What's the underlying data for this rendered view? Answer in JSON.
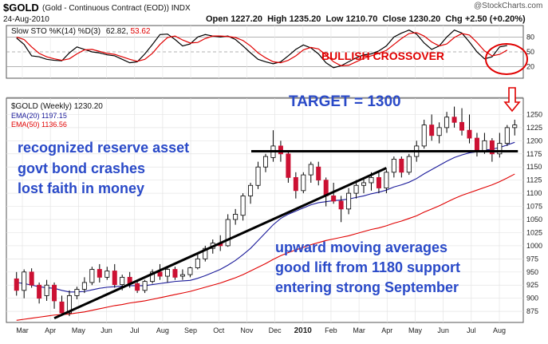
{
  "header": {
    "symbol": "$GOLD",
    "name": "(Gold - Continuous Contract (EOD))",
    "exchange": "INDX",
    "date": "24-Aug-2010",
    "open_label": "Open",
    "open": "1227.20",
    "high_label": "High",
    "high": "1235.20",
    "low_label": "Low",
    "low": "1210.70",
    "close_label": "Close",
    "close": "1230.20",
    "chg_label": "Chg",
    "chg": "+2.50 (+0.20%)",
    "logo_text": "@StockCharts.com"
  },
  "colors": {
    "up_candle": "#ffffff",
    "down_candle": "#cc1133",
    "ema20": "#1a1a9a",
    "ema50": "#e00000",
    "sto_k": "#000000",
    "sto_d": "#e00000",
    "annotation_blue": "#2a4ac8",
    "annotation_red": "#e00000",
    "trendline": "#000000"
  },
  "chart_data": [
    {
      "type": "line",
      "title": "Slow STO %K(14) %D(3)",
      "title_values": "62.82, 53.62",
      "k_label": "62.82",
      "d_label": "53.62",
      "ylim": [
        0,
        100
      ],
      "yticks": [
        "20",
        "50",
        "80"
      ],
      "series": [
        {
          "name": "%K",
          "values": [
            78,
            65,
            42,
            40,
            35,
            33,
            32,
            48,
            60,
            55,
            50,
            48,
            44,
            42,
            35,
            28,
            30,
            46,
            65,
            85,
            86,
            75,
            62,
            66,
            80,
            85,
            82,
            80,
            82,
            75,
            62,
            48,
            35,
            30,
            26,
            30,
            42,
            55,
            64,
            58,
            46,
            28,
            18,
            22,
            30,
            38,
            44,
            46,
            52,
            62,
            80,
            88,
            94,
            86,
            68,
            55,
            62,
            80,
            94,
            88,
            70,
            50,
            36,
            40,
            60,
            62.8
          ]
        },
        {
          "name": "%D",
          "values": [
            80,
            75,
            60,
            47,
            40,
            36,
            33,
            36,
            46,
            54,
            55,
            51,
            47,
            45,
            40,
            35,
            31,
            35,
            47,
            65,
            79,
            82,
            74,
            68,
            69,
            77,
            82,
            82,
            81,
            79,
            73,
            62,
            48,
            38,
            30,
            28,
            33,
            42,
            54,
            59,
            56,
            44,
            30,
            22,
            23,
            30,
            37,
            42,
            47,
            53,
            65,
            77,
            87,
            89,
            82,
            70,
            62,
            66,
            79,
            87,
            84,
            69,
            52,
            42,
            45,
            53.6
          ]
        }
      ],
      "annotations": [
        "BULLISH CROSSOVER"
      ]
    },
    {
      "type": "candlestick",
      "title": "$GOLD (Weekly) 1230.20",
      "ylim": [
        860,
        1275
      ],
      "yticks": [
        875,
        900,
        925,
        950,
        975,
        1000,
        1025,
        1050,
        1075,
        1100,
        1125,
        1150,
        1175,
        1200,
        1225,
        1250
      ],
      "xticks": [
        "Mar",
        "Apr",
        "May",
        "Jun",
        "Jul",
        "Aug",
        "Sep",
        "Oct",
        "Nov",
        "Dec",
        "2010",
        "Feb",
        "Mar",
        "Apr",
        "May",
        "Jun",
        "Jul",
        "Aug"
      ],
      "legend": [
        "$GOLD (Weekly) 1230.20",
        "EMA(20) 1197.15",
        "EMA(50) 1136.56"
      ],
      "ohlc": [
        [
          937,
          950,
          905,
          915
        ],
        [
          915,
          955,
          900,
          950
        ],
        [
          950,
          957,
          920,
          925
        ],
        [
          925,
          930,
          890,
          900
        ],
        [
          905,
          935,
          895,
          925
        ],
        [
          925,
          930,
          880,
          895
        ],
        [
          893,
          905,
          868,
          872
        ],
        [
          872,
          915,
          866,
          905
        ],
        [
          905,
          922,
          898,
          917
        ],
        [
          917,
          940,
          910,
          930
        ],
        [
          930,
          960,
          925,
          955
        ],
        [
          955,
          965,
          930,
          940
        ],
        [
          940,
          960,
          935,
          952
        ],
        [
          952,
          965,
          920,
          926
        ],
        [
          926,
          945,
          915,
          940
        ],
        [
          940,
          950,
          920,
          928
        ],
        [
          928,
          935,
          910,
          915
        ],
        [
          915,
          935,
          910,
          932
        ],
        [
          932,
          955,
          928,
          950
        ],
        [
          950,
          965,
          935,
          942
        ],
        [
          942,
          960,
          930,
          955
        ],
        [
          955,
          960,
          935,
          940
        ],
        [
          942,
          955,
          935,
          945
        ],
        [
          945,
          960,
          940,
          958
        ],
        [
          958,
          985,
          955,
          975
        ],
        [
          975,
          1000,
          970,
          995
        ],
        [
          995,
          1012,
          985,
          1005
        ],
        [
          1005,
          1020,
          990,
          1000
        ],
        [
          1000,
          1060,
          998,
          1050
        ],
        [
          1050,
          1070,
          1040,
          1060
        ],
        [
          1058,
          1100,
          1048,
          1095
        ],
        [
          1095,
          1120,
          1080,
          1115
        ],
        [
          1115,
          1160,
          1108,
          1150
        ],
        [
          1150,
          1175,
          1140,
          1170
        ],
        [
          1168,
          1220,
          1160,
          1190
        ],
        [
          1190,
          1200,
          1160,
          1175
        ],
        [
          1175,
          1180,
          1120,
          1130
        ],
        [
          1130,
          1140,
          1090,
          1105
        ],
        [
          1105,
          1140,
          1100,
          1135
        ],
        [
          1135,
          1160,
          1120,
          1155
        ],
        [
          1150,
          1160,
          1115,
          1125
        ],
        [
          1125,
          1130,
          1075,
          1095
        ],
        [
          1095,
          1120,
          1080,
          1085
        ],
        [
          1085,
          1095,
          1045,
          1070
        ],
        [
          1070,
          1110,
          1060,
          1100
        ],
        [
          1100,
          1125,
          1090,
          1115
        ],
        [
          1115,
          1130,
          1100,
          1120
        ],
        [
          1120,
          1140,
          1105,
          1130
        ],
        [
          1130,
          1140,
          1100,
          1110
        ],
        [
          1110,
          1145,
          1100,
          1140
        ],
        [
          1140,
          1170,
          1130,
          1165
        ],
        [
          1165,
          1170,
          1130,
          1140
        ],
        [
          1140,
          1175,
          1135,
          1170
        ],
        [
          1170,
          1200,
          1160,
          1190
        ],
        [
          1190,
          1240,
          1185,
          1230
        ],
        [
          1230,
          1250,
          1200,
          1210
        ],
        [
          1210,
          1235,
          1195,
          1225
        ],
        [
          1225,
          1255,
          1215,
          1245
        ],
        [
          1245,
          1265,
          1225,
          1235
        ],
        [
          1235,
          1262,
          1210,
          1220
        ],
        [
          1220,
          1250,
          1195,
          1205
        ],
        [
          1205,
          1215,
          1170,
          1180
        ],
        [
          1180,
          1215,
          1175,
          1200
        ],
        [
          1200,
          1205,
          1160,
          1175
        ],
        [
          1175,
          1215,
          1168,
          1195
        ],
        [
          1195,
          1230,
          1190,
          1225
        ],
        [
          1225,
          1240,
          1210,
          1230
        ]
      ],
      "series": [
        {
          "name": "EMA(20)",
          "values": [
            930,
            928,
            925,
            922,
            920,
            919,
            915,
            912,
            912,
            913,
            916,
            919,
            921,
            922,
            923,
            924,
            924,
            924,
            926,
            928,
            930,
            932,
            933,
            934,
            938,
            943,
            949,
            955,
            963,
            972,
            983,
            995,
            1010,
            1025,
            1040,
            1052,
            1060,
            1066,
            1072,
            1078,
            1082,
            1084,
            1086,
            1087,
            1089,
            1092,
            1095,
            1099,
            1102,
            1106,
            1112,
            1116,
            1121,
            1128,
            1137,
            1145,
            1153,
            1161,
            1168,
            1173,
            1177,
            1179,
            1182,
            1184,
            1187,
            1192,
            1197
          ]
        },
        {
          "name": "EMA(50)",
          "values": [
            858,
            860,
            862,
            864,
            866,
            868,
            869,
            870,
            872,
            874,
            877,
            880,
            883,
            886,
            888,
            891,
            893,
            895,
            898,
            901,
            904,
            907,
            910,
            913,
            917,
            921,
            925,
            929,
            934,
            939,
            945,
            952,
            959,
            966,
            974,
            981,
            987,
            992,
            997,
            1002,
            1006,
            1010,
            1013,
            1016,
            1019,
            1023,
            1027,
            1031,
            1034,
            1038,
            1043,
            1047,
            1052,
            1057,
            1064,
            1070,
            1076,
            1083,
            1090,
            1096,
            1101,
            1106,
            1111,
            1116,
            1122,
            1129,
            1136.56
          ]
        }
      ],
      "annotations": [
        "TARGET = 1300",
        "recognized reserve asset",
        "govt bond crashes",
        "lost faith in money",
        "upward moving averages",
        "good lift from 1180 support",
        "entering strong September"
      ],
      "support_level": 1180
    }
  ]
}
